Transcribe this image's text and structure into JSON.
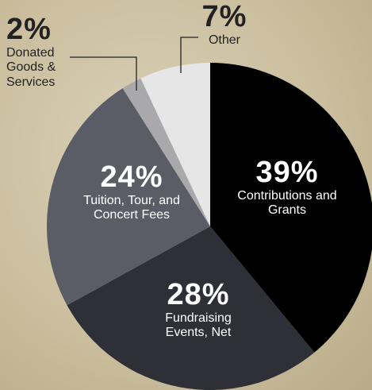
{
  "chart_data": {
    "type": "pie",
    "categories": [
      "Contributions and Grants",
      "Fundraising Events, Net",
      "Tuition, Tour, and Concert Fees",
      "Donated Goods & Services",
      "Other"
    ],
    "values": [
      39,
      28,
      24,
      2,
      7
    ],
    "value_labels": [
      "39%",
      "28%",
      "24%",
      "2%",
      "7%"
    ],
    "colors": [
      "#000000",
      "#2e2f37",
      "#5b5d66",
      "#a9a9ac",
      "#e6e6e6"
    ]
  }
}
